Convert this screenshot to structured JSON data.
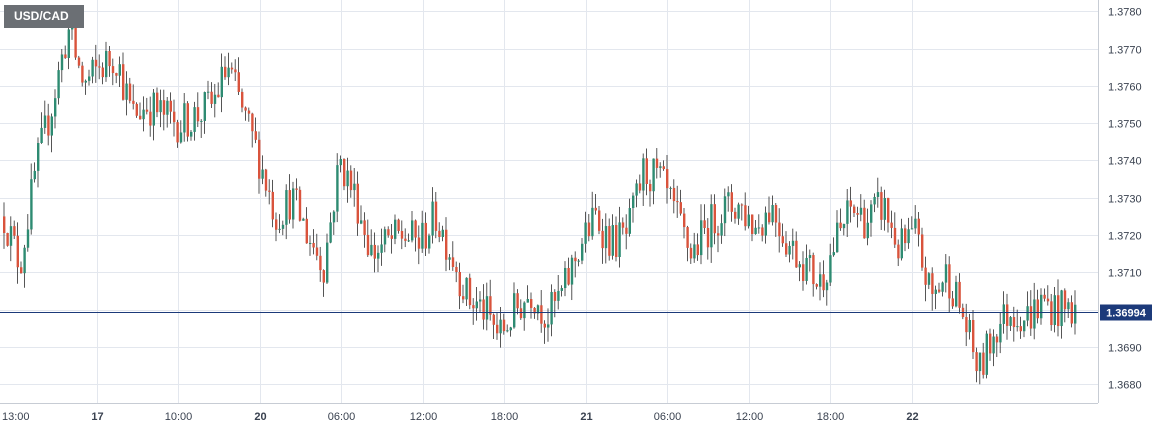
{
  "symbol": "USD/CAD",
  "colors": {
    "up": "#2e8b72",
    "down": "#d9533c",
    "wick": "#2b2b2b",
    "price_line": "#1c3a7a",
    "price_badge_bg": "#1c3a7a",
    "price_badge_text": "#ffffff",
    "grid": "#e3e7ee"
  },
  "chart_data": {
    "type": "candlestick",
    "title": "USD/CAD",
    "ylim": [
      1.3675,
      1.3783
    ],
    "y_ticks": [
      "1.3680",
      "1.3690",
      "1.3700",
      "1.3710",
      "1.3720",
      "1.3730",
      "1.3740",
      "1.3750",
      "1.3760",
      "1.3770",
      "1.3780"
    ],
    "x_ticks": [
      {
        "label": "13:00",
        "bold": false
      },
      {
        "label": "17",
        "bold": true
      },
      {
        "label": "10:00",
        "bold": false
      },
      {
        "label": "20",
        "bold": true
      },
      {
        "label": "06:00",
        "bold": false
      },
      {
        "label": "12:00",
        "bold": false
      },
      {
        "label": "18:00",
        "bold": false
      },
      {
        "label": "21",
        "bold": true
      },
      {
        "label": "06:00",
        "bold": false
      },
      {
        "label": "12:00",
        "bold": false
      },
      {
        "label": "18:00",
        "bold": false
      },
      {
        "label": "22",
        "bold": true
      }
    ],
    "current_price": "1.36994",
    "close_path": [
      1.3725,
      1.3712,
      1.3738,
      1.3755,
      1.3775,
      1.376,
      1.3765,
      1.3768,
      1.3752,
      1.3755,
      1.3752,
      1.375,
      1.3752,
      1.3755,
      1.3765,
      1.3752,
      1.374,
      1.3725,
      1.373,
      1.372,
      1.3712,
      1.374,
      1.373,
      1.3715,
      1.3718,
      1.372,
      1.3718,
      1.3725,
      1.3715,
      1.3703,
      1.37,
      1.3693,
      1.37,
      1.3705,
      1.3698,
      1.3705,
      1.3717,
      1.3725,
      1.3718,
      1.372,
      1.3737,
      1.3735,
      1.3725,
      1.3715,
      1.3722,
      1.3727,
      1.3728,
      1.3722,
      1.3728,
      1.3718,
      1.3713,
      1.3707,
      1.3718,
      1.3727,
      1.3724,
      1.3728,
      1.3716,
      1.372,
      1.3703,
      1.371,
      1.3698,
      1.3683,
      1.3695,
      1.37,
      1.3698,
      1.3702,
      1.37,
      1.37
    ]
  }
}
